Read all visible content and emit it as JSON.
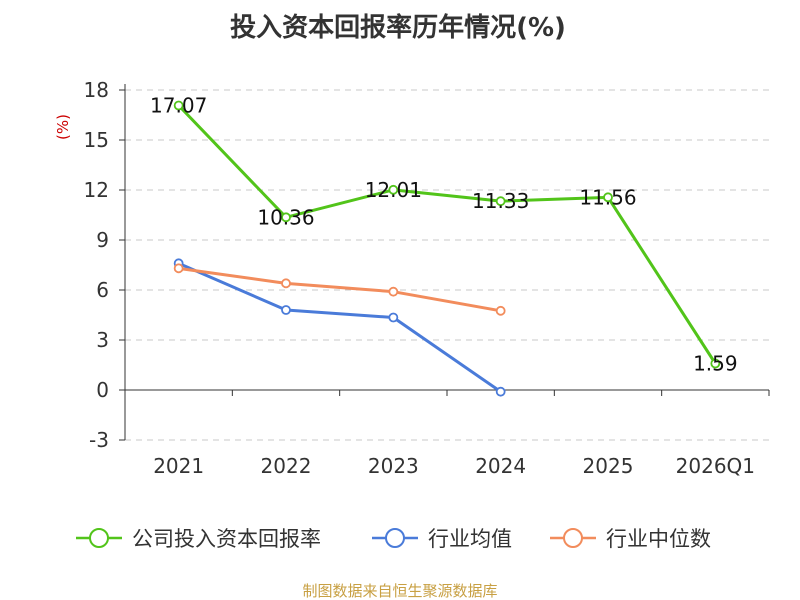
{
  "chart_data": {
    "type": "line",
    "title": "投入资本回报率历年情况(%)",
    "ylabel": "(%)",
    "xlabel": "",
    "categories": [
      "2021",
      "2022",
      "2023",
      "2024",
      "2025",
      "2026Q1"
    ],
    "yticks": [
      18,
      15,
      12,
      9,
      6,
      3,
      0,
      -3
    ],
    "ylim": [
      -3,
      18
    ],
    "grid": true,
    "legend_position": "bottom",
    "series": [
      {
        "name": "公司投入资本回报率",
        "color": "#52c41a",
        "values": [
          17.07,
          10.36,
          12.01,
          11.33,
          11.56,
          1.59
        ],
        "show_labels": true
      },
      {
        "name": "行业均值",
        "color": "#4a7bd9",
        "values": [
          7.6,
          4.8,
          4.35,
          -0.1,
          null,
          null
        ],
        "show_labels": false
      },
      {
        "name": "行业中位数",
        "color": "#f28c5c",
        "values": [
          7.3,
          6.4,
          5.9,
          4.75,
          null,
          null
        ],
        "show_labels": false
      }
    ],
    "ylabel_color": "#cc0000"
  },
  "source": "制图数据来自恒生聚源数据库",
  "source_color": "#c8a043"
}
